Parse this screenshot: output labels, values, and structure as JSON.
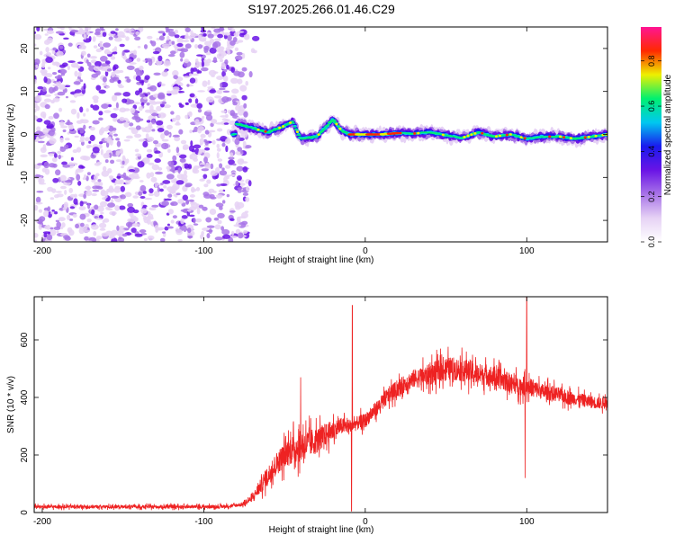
{
  "page_title": "S197.2025.266.01.46.C29",
  "colors": {
    "snr_line": "#ee2222",
    "cmap": [
      "#ffffff",
      "#e6d2f5",
      "#a874e8",
      "#6a14e6",
      "#1a1aee",
      "#00c8f0",
      "#00f070",
      "#eef000",
      "#ff2a00",
      "#ff1493"
    ]
  },
  "chart_data": [
    {
      "id": "spectrogram",
      "type": "heatmap",
      "title": "",
      "xlabel": "Height of straight line (km)",
      "ylabel": "Frequency (Hz)",
      "xlim": [
        -205,
        150
      ],
      "ylim": [
        -25,
        25
      ],
      "xticks": [
        -200,
        -100,
        0,
        100
      ],
      "xtick_labels": [
        "-200",
        "-100",
        "0",
        "100"
      ],
      "yticks": [
        20,
        10,
        0,
        -10,
        -20
      ],
      "ytick_labels": [
        "20",
        "10",
        "0",
        "-10",
        "-20"
      ],
      "noise_region_x": [
        -205,
        -73
      ],
      "ridge_points": [
        {
          "x": -80,
          "y": 2.5
        },
        {
          "x": -70,
          "y": 1.5
        },
        {
          "x": -60,
          "y": 0.5
        },
        {
          "x": -50,
          "y": 2.0
        },
        {
          "x": -45,
          "y": 3.0
        },
        {
          "x": -40,
          "y": -1.0
        },
        {
          "x": -30,
          "y": -0.5
        },
        {
          "x": -20,
          "y": 3.5
        },
        {
          "x": -15,
          "y": 1.0
        },
        {
          "x": -10,
          "y": 0.0
        },
        {
          "x": 0,
          "y": 0.0
        },
        {
          "x": 10,
          "y": 0.0
        },
        {
          "x": 20,
          "y": 0.3
        },
        {
          "x": 30,
          "y": 0.2
        },
        {
          "x": 40,
          "y": 0.5
        },
        {
          "x": 50,
          "y": -0.2
        },
        {
          "x": 60,
          "y": -0.8
        },
        {
          "x": 70,
          "y": 0.5
        },
        {
          "x": 80,
          "y": -0.5
        },
        {
          "x": 90,
          "y": 0.0
        },
        {
          "x": 100,
          "y": -1.0
        },
        {
          "x": 110,
          "y": -0.5
        },
        {
          "x": 120,
          "y": -0.5
        },
        {
          "x": 130,
          "y": -1.0
        },
        {
          "x": 140,
          "y": -0.5
        },
        {
          "x": 150,
          "y": 0.0
        }
      ],
      "peak_amplitude_x_range": [
        -10,
        20
      ],
      "colorbar": {
        "label": "Normalized spectral amplitude",
        "range": [
          0,
          0.95
        ],
        "ticks": [
          0.0,
          0.2,
          0.4,
          0.6,
          0.8
        ],
        "tick_labels": [
          "0.0",
          "0.2",
          "0.4",
          "0.6",
          "0.8"
        ]
      }
    },
    {
      "id": "snr",
      "type": "line",
      "title": "",
      "xlabel": "Height of straight line (km)",
      "ylabel": "SNR (10 * v/v)",
      "xlim": [
        -205,
        150
      ],
      "ylim": [
        0,
        750
      ],
      "xticks": [
        -200,
        -100,
        0,
        100
      ],
      "xtick_labels": [
        "-200",
        "-100",
        "0",
        "100"
      ],
      "yticks": [
        0,
        200,
        400,
        600
      ],
      "ytick_labels": [
        "0",
        "200",
        "400",
        "600"
      ],
      "series": [
        {
          "name": "SNR",
          "x": [
            -205,
            -180,
            -160,
            -140,
            -120,
            -100,
            -90,
            -80,
            -75,
            -70,
            -65,
            -60,
            -55,
            -50,
            -45,
            -40,
            -35,
            -30,
            -25,
            -20,
            -15,
            -10,
            -5,
            0,
            5,
            10,
            15,
            20,
            25,
            30,
            35,
            40,
            45,
            50,
            55,
            60,
            65,
            70,
            75,
            80,
            85,
            90,
            95,
            100,
            105,
            110,
            115,
            120,
            125,
            130,
            135,
            140,
            145,
            150
          ],
          "y": [
            20,
            20,
            20,
            20,
            20,
            20,
            20,
            25,
            30,
            50,
            90,
            130,
            170,
            200,
            220,
            230,
            240,
            250,
            270,
            285,
            300,
            300,
            310,
            320,
            350,
            380,
            410,
            430,
            450,
            465,
            470,
            480,
            490,
            500,
            500,
            495,
            490,
            480,
            480,
            470,
            460,
            450,
            440,
            440,
            430,
            420,
            415,
            410,
            400,
            395,
            390,
            385,
            380,
            380
          ],
          "noise_amplitude": [
            12,
            12,
            12,
            12,
            12,
            12,
            12,
            12,
            15,
            25,
            50,
            70,
            80,
            90,
            100,
            110,
            100,
            90,
            80,
            70,
            60,
            50,
            50,
            50,
            50,
            55,
            60,
            60,
            60,
            65,
            70,
            75,
            80,
            80,
            80,
            80,
            80,
            75,
            75,
            70,
            70,
            70,
            65,
            65,
            60,
            55,
            55,
            50,
            50,
            45,
            45,
            45,
            40,
            40
          ]
        }
      ],
      "spikes": [
        {
          "x": -8,
          "y": 720
        },
        {
          "x": -8.5,
          "y": 5
        },
        {
          "x": -40,
          "y": 470
        },
        {
          "x": 100,
          "y": 750
        },
        {
          "x": 99,
          "y": 120
        }
      ]
    }
  ]
}
